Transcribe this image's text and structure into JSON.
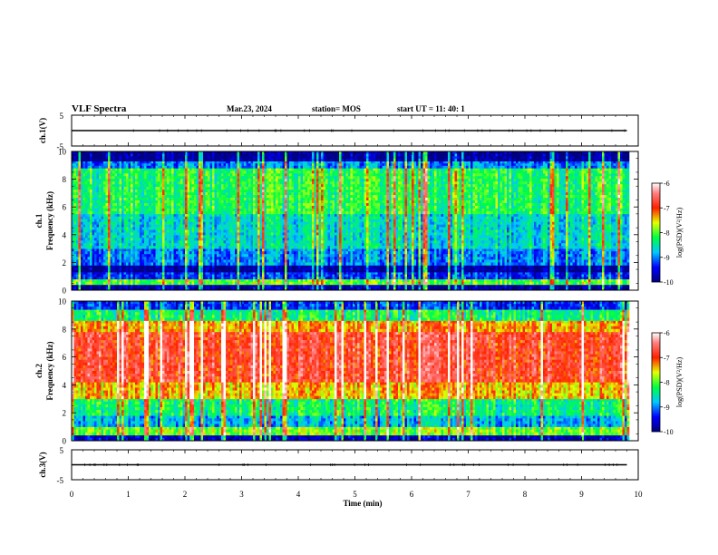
{
  "header": {
    "title": "VLF Spectra",
    "date": "Mar.23, 2024",
    "station": "station= MOS",
    "start": "start  UT =   11: 40: 1"
  },
  "chart_data": [
    {
      "type": "line",
      "name_label": "ch.1(V)",
      "ylabel": "ch.1(V)",
      "ylim": [
        -5,
        5
      ],
      "yticks": [
        "5",
        "-5"
      ],
      "x": [
        0,
        9.8
      ],
      "values": [
        0,
        0
      ]
    },
    {
      "type": "heatmap",
      "ylabel_top": "ch.1",
      "ylabel": "Frequency (kHz)",
      "ylim": [
        0,
        10
      ],
      "yticks": [
        "0",
        "2",
        "4",
        "6",
        "8",
        "10"
      ],
      "colorbar": {
        "label": "log(PSD)(V²/Hz)",
        "range": [
          -10,
          -6
        ],
        "ticks": [
          "-6",
          "-7",
          "-8",
          "-9",
          "-10"
        ]
      },
      "bands_khz_log_psd": [
        {
          "from": 0.0,
          "to": 0.4,
          "value": -9.8
        },
        {
          "from": 0.4,
          "to": 0.8,
          "value": -8.0
        },
        {
          "from": 0.8,
          "to": 1.3,
          "value": -9.3
        },
        {
          "from": 1.3,
          "to": 1.8,
          "value": -9.9
        },
        {
          "from": 1.8,
          "to": 3.0,
          "value": -9.0
        },
        {
          "from": 3.0,
          "to": 5.5,
          "value": -8.6
        },
        {
          "from": 5.5,
          "to": 8.8,
          "value": -8.2
        },
        {
          "from": 8.8,
          "to": 9.3,
          "value": -9.0
        },
        {
          "from": 9.3,
          "to": 10.0,
          "value": -9.9
        }
      ]
    },
    {
      "type": "heatmap",
      "ylabel_top": "ch.2",
      "ylabel": "Frequency (kHz)",
      "ylim": [
        0,
        10
      ],
      "yticks": [
        "0",
        "2",
        "4",
        "6",
        "8",
        "10"
      ],
      "colorbar": {
        "label": "log(PSD)(V²/Hz)",
        "range": [
          -10,
          -6
        ],
        "ticks": [
          "-6",
          "-7",
          "-8",
          "-9",
          "-10"
        ]
      },
      "bands_khz_log_psd": [
        {
          "from": 0.0,
          "to": 0.4,
          "value": -9.7
        },
        {
          "from": 0.4,
          "to": 1.0,
          "value": -7.9
        },
        {
          "from": 1.0,
          "to": 1.8,
          "value": -8.8
        },
        {
          "from": 1.8,
          "to": 3.0,
          "value": -8.3
        },
        {
          "from": 3.0,
          "to": 4.2,
          "value": -7.4
        },
        {
          "from": 4.2,
          "to": 7.8,
          "value": -6.8
        },
        {
          "from": 7.8,
          "to": 8.6,
          "value": -7.3
        },
        {
          "from": 8.6,
          "to": 9.4,
          "value": -8.3
        },
        {
          "from": 9.4,
          "to": 10.0,
          "value": -9.3
        }
      ]
    },
    {
      "type": "line",
      "name_label": "ch.3(V)",
      "ylabel": "ch.3(V)",
      "ylim": [
        -5,
        5
      ],
      "yticks": [
        "5",
        "-5"
      ],
      "x": [
        0,
        9.8
      ],
      "values": [
        0,
        0
      ]
    }
  ],
  "xaxis": {
    "label": "Time (min)",
    "range": [
      0,
      10
    ],
    "ticks": [
      "0",
      "1",
      "2",
      "3",
      "4",
      "5",
      "6",
      "7",
      "8",
      "9",
      "10"
    ]
  }
}
